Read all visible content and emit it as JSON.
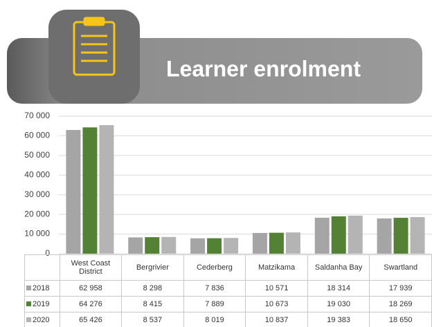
{
  "chart_data": {
    "type": "bar",
    "title": "Learner enrolment",
    "categories": [
      "West Coast District",
      "Bergrivier",
      "Cederberg",
      "Matzikama",
      "Saldanha Bay",
      "Swartland"
    ],
    "series": [
      {
        "name": "2018",
        "color": "#a5a5a5",
        "values": [
          62958,
          8298,
          7836,
          10571,
          18314,
          17939
        ],
        "value_labels": [
          "62 958",
          "8 298",
          "7 836",
          "10 571",
          "18 314",
          "17 939"
        ]
      },
      {
        "name": "2019",
        "color": "#548235",
        "values": [
          64276,
          8415,
          7889,
          10673,
          19030,
          18269
        ],
        "value_labels": [
          "64 276",
          "8 415",
          "7 889",
          "10 673",
          "19 030",
          "18 269"
        ]
      },
      {
        "name": "2020",
        "color": "#b4b4b4",
        "values": [
          65426,
          8537,
          8019,
          10837,
          19383,
          18650
        ],
        "value_labels": [
          "65 426",
          "8 537",
          "8 019",
          "10 837",
          "19 383",
          "18 650"
        ]
      }
    ],
    "ylim": [
      0,
      70000
    ],
    "yticks": [
      0,
      {
        "value": 10000,
        "label": "10 000"
      },
      {
        "value": 20000,
        "label": "20 000"
      },
      {
        "value": 30000,
        "label": "30 000"
      },
      {
        "value": 40000,
        "label": "40 000"
      },
      {
        "value": 50000,
        "label": "50 000"
      },
      {
        "value": 60000,
        "label": "60 000"
      },
      {
        "value": 70000,
        "label": "70 000"
      }
    ],
    "grid": true
  }
}
